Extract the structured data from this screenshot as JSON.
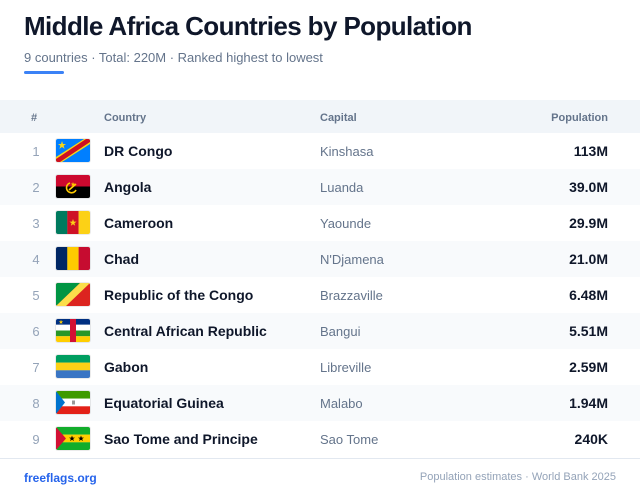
{
  "header": {
    "title": "Middle Africa Countries by Population",
    "subtitle": "9 countries · Total: 220M · Ranked highest to lowest",
    "accent_color": "#3b82f6"
  },
  "table": {
    "columns": {
      "rank": "#",
      "country": "Country",
      "capital": "Capital",
      "population": "Population"
    },
    "rows": [
      {
        "rank": "1",
        "flag": "dr-congo-flag-icon",
        "country": "DR Congo",
        "capital": "Kinshasa",
        "population": "113M"
      },
      {
        "rank": "2",
        "flag": "angola-flag-icon",
        "country": "Angola",
        "capital": "Luanda",
        "population": "39.0M"
      },
      {
        "rank": "3",
        "flag": "cameroon-flag-icon",
        "country": "Cameroon",
        "capital": "Yaounde",
        "population": "29.9M"
      },
      {
        "rank": "4",
        "flag": "chad-flag-icon",
        "country": "Chad",
        "capital": "N'Djamena",
        "population": "21.0M"
      },
      {
        "rank": "5",
        "flag": "republic-of-the-congo-flag-icon",
        "country": "Republic of the Congo",
        "capital": "Brazzaville",
        "population": "6.48M"
      },
      {
        "rank": "6",
        "flag": "central-african-republic-flag-icon",
        "country": "Central African Republic",
        "capital": "Bangui",
        "population": "5.51M"
      },
      {
        "rank": "7",
        "flag": "gabon-flag-icon",
        "country": "Gabon",
        "capital": "Libreville",
        "population": "2.59M"
      },
      {
        "rank": "8",
        "flag": "equatorial-guinea-flag-icon",
        "country": "Equatorial Guinea",
        "capital": "Malabo",
        "population": "1.94M"
      },
      {
        "rank": "9",
        "flag": "sao-tome-and-principe-flag-icon",
        "country": "Sao Tome and Principe",
        "capital": "Sao Tome",
        "population": "240K"
      }
    ]
  },
  "footer": {
    "link_text": "freeflags.org",
    "source": "Population estimates · World Bank 2025"
  }
}
